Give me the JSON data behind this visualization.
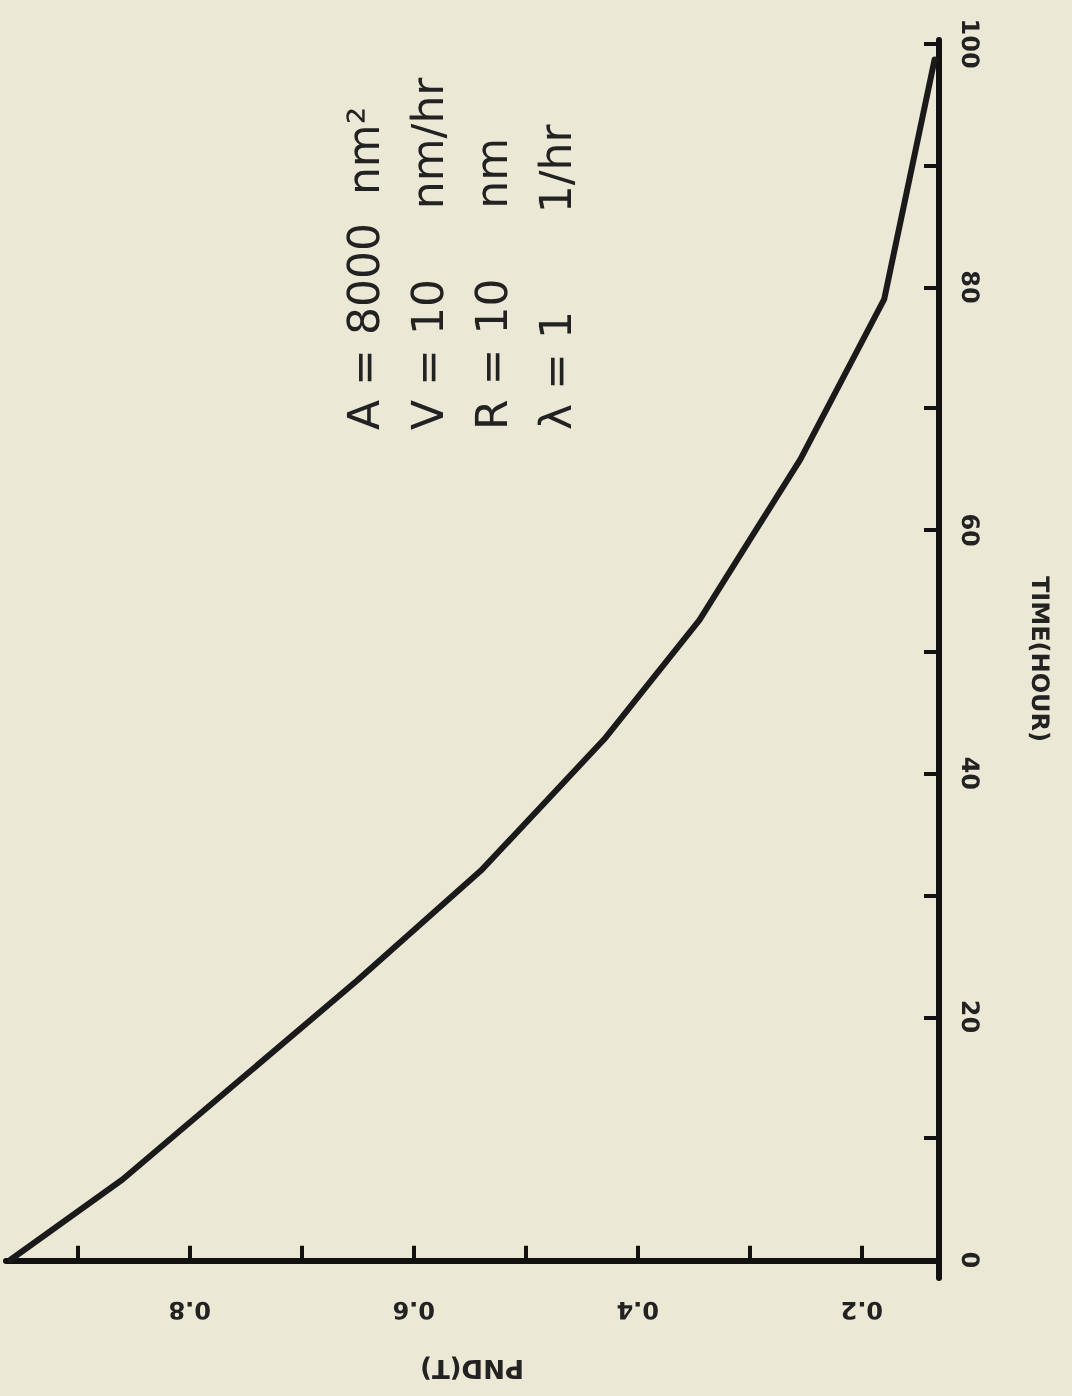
{
  "chart_data": {
    "type": "line",
    "xlabel": "PND(T)",
    "ylabel": "TIME(HOUR)",
    "annotations": [
      "A = 8000  nm²",
      "V = 10     nm/hr",
      "R = 10     nm",
      "λ = 1       1/hr"
    ],
    "x": [
      0.96,
      0.86,
      0.755,
      0.65,
      0.54,
      0.43,
      0.345,
      0.255,
      0.18,
      0.135
    ],
    "series": [
      {
        "color": "#1a1a1a",
        "values": [
          0,
          6.6,
          14.8,
          23,
          32,
          42.8,
          52.6,
          65.8,
          79,
          98.7
        ]
      }
    ],
    "xlim": [
      0.964,
      0.132
    ],
    "xticks": [
      {
        "value": 0.9,
        "label": null
      },
      0.8,
      {
        "value": 0.7,
        "label": null
      },
      0.6,
      {
        "value": 0.5,
        "label": null
      },
      0.4,
      {
        "value": 0.3,
        "label": null
      },
      0.2
    ],
    "ylim": [
      -1.5,
      100.3
    ],
    "yticks": [
      0,
      {
        "value": 10,
        "label": null
      },
      20,
      {
        "value": 30,
        "label": null
      },
      40,
      {
        "value": 50,
        "label": null
      },
      60,
      {
        "value": 70,
        "label": null
      },
      80,
      {
        "value": 90,
        "label": null
      },
      100
    ],
    "grid": false,
    "marker": "none",
    "line_style": "solid"
  }
}
